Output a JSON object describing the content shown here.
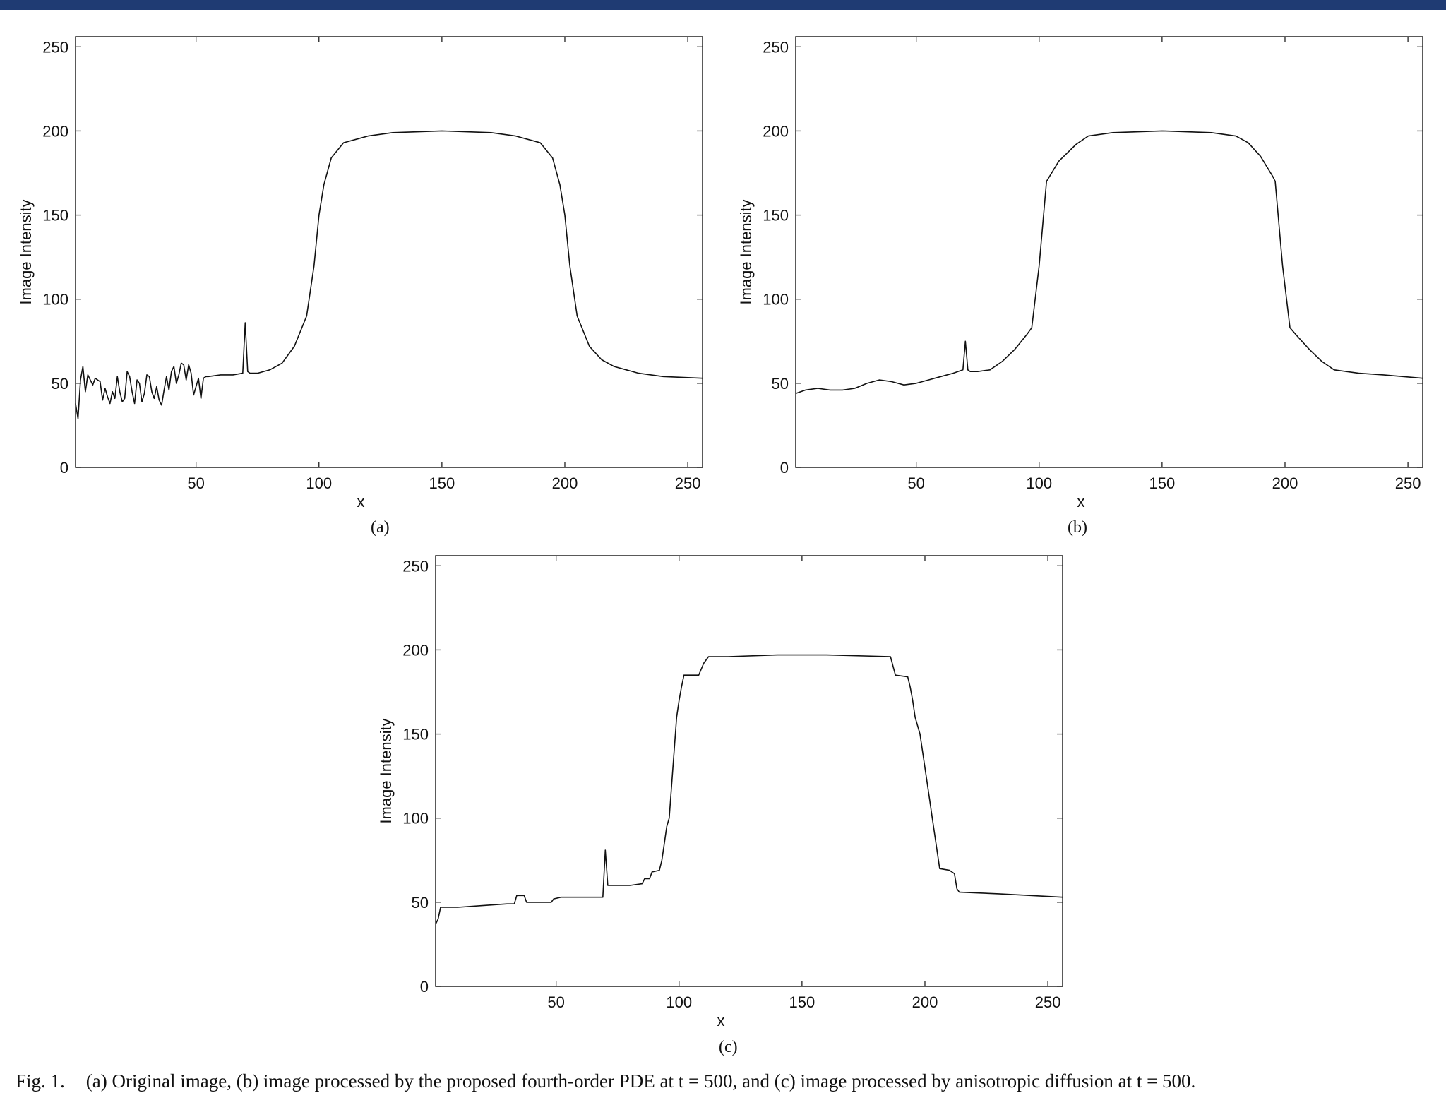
{
  "header": {
    "accent_color": "#1f3b73"
  },
  "caption": {
    "tag": "Fig. 1.",
    "text": "(a) Original image, (b) image processed by the proposed fourth-order PDE at t = 500, and (c) image processed by anisotropic diffusion at t = 500."
  },
  "chart_data": [
    {
      "id": "a",
      "type": "line",
      "sublabel": "(a)",
      "xlabel": "x",
      "ylabel": "Image Intensity",
      "xlim": [
        1,
        256
      ],
      "ylim": [
        0,
        256
      ],
      "xticks": [
        50,
        100,
        150,
        200,
        250
      ],
      "yticks": [
        0,
        50,
        100,
        150,
        200,
        250
      ],
      "grid": false,
      "series": [
        {
          "points": [
            [
              1,
              38
            ],
            [
              2,
              29
            ],
            [
              3,
              52
            ],
            [
              4,
              60
            ],
            [
              5,
              45
            ],
            [
              6,
              55
            ],
            [
              7,
              52
            ],
            [
              8,
              49
            ],
            [
              9,
              53
            ],
            [
              10,
              52
            ],
            [
              11,
              51
            ],
            [
              12,
              40
            ],
            [
              13,
              47
            ],
            [
              14,
              42
            ],
            [
              15,
              38
            ],
            [
              16,
              45
            ],
            [
              17,
              41
            ],
            [
              18,
              54
            ],
            [
              19,
              45
            ],
            [
              20,
              39
            ],
            [
              21,
              41
            ],
            [
              22,
              57
            ],
            [
              23,
              54
            ],
            [
              24,
              45
            ],
            [
              25,
              38
            ],
            [
              26,
              52
            ],
            [
              27,
              50
            ],
            [
              28,
              39
            ],
            [
              29,
              44
            ],
            [
              30,
              55
            ],
            [
              31,
              54
            ],
            [
              32,
              45
            ],
            [
              33,
              41
            ],
            [
              34,
              48
            ],
            [
              35,
              40
            ],
            [
              36,
              37
            ],
            [
              37,
              46
            ],
            [
              38,
              54
            ],
            [
              39,
              46
            ],
            [
              40,
              57
            ],
            [
              41,
              60
            ],
            [
              42,
              50
            ],
            [
              43,
              55
            ],
            [
              44,
              62
            ],
            [
              45,
              61
            ],
            [
              46,
              52
            ],
            [
              47,
              61
            ],
            [
              48,
              56
            ],
            [
              49,
              43
            ],
            [
              50,
              48
            ],
            [
              51,
              53
            ],
            [
              52,
              41
            ],
            [
              53,
              53
            ],
            [
              54,
              54
            ],
            [
              55,
              54
            ],
            [
              60,
              55
            ],
            [
              65,
              55
            ],
            [
              69,
              56
            ],
            [
              70,
              86
            ],
            [
              71,
              57
            ],
            [
              72,
              56
            ],
            [
              75,
              56
            ],
            [
              80,
              58
            ],
            [
              85,
              62
            ],
            [
              90,
              72
            ],
            [
              95,
              90
            ],
            [
              98,
              120
            ],
            [
              100,
              150
            ],
            [
              102,
              168
            ],
            [
              105,
              184
            ],
            [
              110,
              193
            ],
            [
              120,
              197
            ],
            [
              130,
              199
            ],
            [
              150,
              200
            ],
            [
              170,
              199
            ],
            [
              180,
              197
            ],
            [
              190,
              193
            ],
            [
              195,
              184
            ],
            [
              198,
              168
            ],
            [
              200,
              150
            ],
            [
              202,
              120
            ],
            [
              205,
              90
            ],
            [
              210,
              72
            ],
            [
              215,
              64
            ],
            [
              220,
              60
            ],
            [
              230,
              56
            ],
            [
              240,
              54
            ],
            [
              256,
              53
            ]
          ]
        }
      ]
    },
    {
      "id": "b",
      "type": "line",
      "sublabel": "(b)",
      "xlabel": "x",
      "ylabel": "Image Intensity",
      "xlim": [
        1,
        256
      ],
      "ylim": [
        0,
        256
      ],
      "xticks": [
        50,
        100,
        150,
        200,
        250
      ],
      "yticks": [
        0,
        50,
        100,
        150,
        200,
        250
      ],
      "grid": false,
      "series": [
        {
          "points": [
            [
              1,
              44
            ],
            [
              5,
              46
            ],
            [
              10,
              47
            ],
            [
              15,
              46
            ],
            [
              20,
              46
            ],
            [
              25,
              47
            ],
            [
              30,
              50
            ],
            [
              35,
              52
            ],
            [
              40,
              51
            ],
            [
              45,
              49
            ],
            [
              50,
              50
            ],
            [
              55,
              52
            ],
            [
              60,
              54
            ],
            [
              65,
              56
            ],
            [
              69,
              58
            ],
            [
              70,
              75
            ],
            [
              71,
              58
            ],
            [
              72,
              57
            ],
            [
              75,
              57
            ],
            [
              80,
              58
            ],
            [
              85,
              63
            ],
            [
              90,
              70
            ],
            [
              95,
              79
            ],
            [
              97,
              83
            ],
            [
              100,
              120
            ],
            [
              103,
              170
            ],
            [
              108,
              182
            ],
            [
              115,
              192
            ],
            [
              120,
              197
            ],
            [
              130,
              199
            ],
            [
              150,
              200
            ],
            [
              170,
              199
            ],
            [
              180,
              197
            ],
            [
              185,
              193
            ],
            [
              190,
              185
            ],
            [
              195,
              173
            ],
            [
              196,
              170
            ],
            [
              199,
              120
            ],
            [
              202,
              83
            ],
            [
              205,
              78
            ],
            [
              210,
              70
            ],
            [
              215,
              63
            ],
            [
              220,
              58
            ],
            [
              230,
              56
            ],
            [
              240,
              55
            ],
            [
              256,
              53
            ]
          ]
        }
      ]
    },
    {
      "id": "c",
      "type": "line",
      "sublabel": "(c)",
      "xlabel": "x",
      "ylabel": "Image Intensity",
      "xlim": [
        1,
        256
      ],
      "ylim": [
        0,
        256
      ],
      "xticks": [
        50,
        100,
        150,
        200,
        250
      ],
      "yticks": [
        0,
        50,
        100,
        150,
        200,
        250
      ],
      "grid": false,
      "series": [
        {
          "points": [
            [
              1,
              37
            ],
            [
              2,
              40
            ],
            [
              3,
              47
            ],
            [
              10,
              47
            ],
            [
              20,
              48
            ],
            [
              30,
              49
            ],
            [
              33,
              49
            ],
            [
              34,
              54
            ],
            [
              37,
              54
            ],
            [
              38,
              50
            ],
            [
              48,
              50
            ],
            [
              49,
              52
            ],
            [
              52,
              53
            ],
            [
              60,
              53
            ],
            [
              69,
              53
            ],
            [
              70,
              81
            ],
            [
              71,
              60
            ],
            [
              72,
              60
            ],
            [
              80,
              60
            ],
            [
              85,
              61
            ],
            [
              86,
              64
            ],
            [
              88,
              64
            ],
            [
              89,
              68
            ],
            [
              92,
              69
            ],
            [
              93,
              75
            ],
            [
              94,
              85
            ],
            [
              95,
              95
            ],
            [
              96,
              100
            ],
            [
              97,
              120
            ],
            [
              98,
              140
            ],
            [
              99,
              160
            ],
            [
              100,
              170
            ],
            [
              101,
              178
            ],
            [
              102,
              185
            ],
            [
              108,
              185
            ],
            [
              110,
              192
            ],
            [
              112,
              196
            ],
            [
              120,
              196
            ],
            [
              140,
              197
            ],
            [
              160,
              197
            ],
            [
              186,
              196
            ],
            [
              188,
              185
            ],
            [
              193,
              184
            ],
            [
              194,
              178
            ],
            [
              195,
              170
            ],
            [
              196,
              160
            ],
            [
              198,
              150
            ],
            [
              200,
              130
            ],
            [
              202,
              110
            ],
            [
              203,
              100
            ],
            [
              204,
              90
            ],
            [
              205,
              80
            ],
            [
              206,
              70
            ],
            [
              210,
              69
            ],
            [
              211,
              68
            ],
            [
              212,
              67
            ],
            [
              213,
              58
            ],
            [
              214,
              56
            ],
            [
              230,
              55
            ],
            [
              256,
              53
            ]
          ]
        }
      ]
    }
  ]
}
